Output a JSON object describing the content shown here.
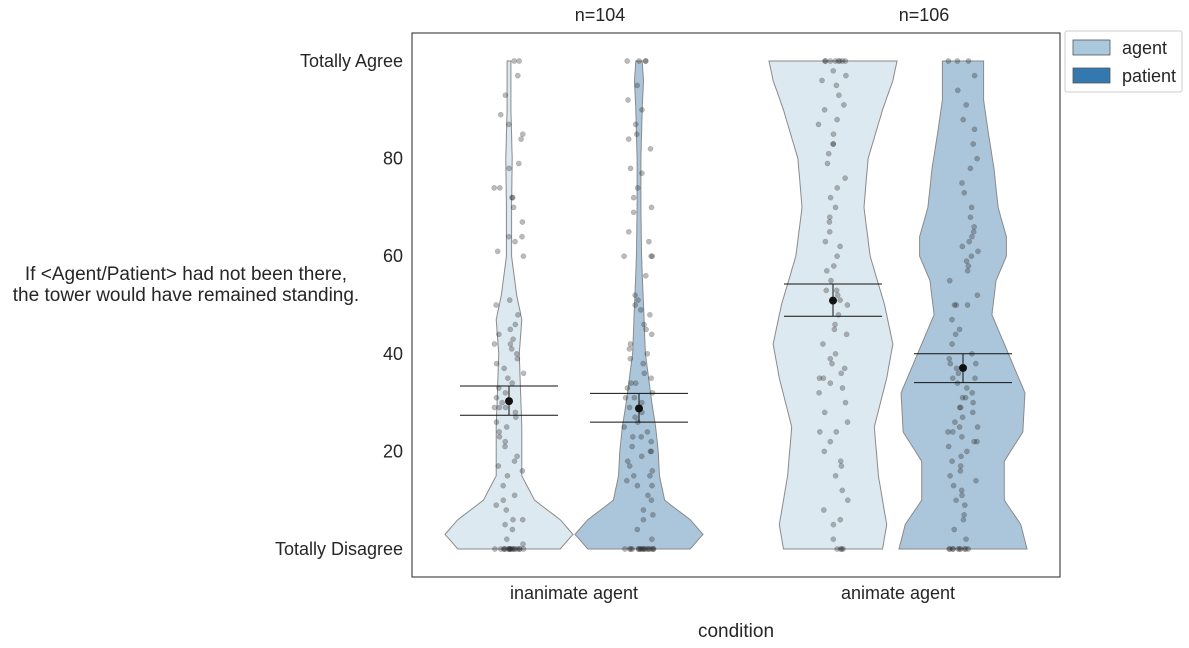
{
  "chart_data": {
    "type": "violin",
    "xlabel": "condition",
    "ylabel": [
      "If <Agent/Patient> had not been there,",
      "the tower would have remained standing."
    ],
    "categories": [
      "inanimate agent",
      "animate agent"
    ],
    "annotations": [
      "n=104",
      "n=106"
    ],
    "ylim": [
      0,
      100
    ],
    "yticks": [
      {
        "value": 0,
        "label": "Totally Disagree"
      },
      {
        "value": 20,
        "label": "20"
      },
      {
        "value": 40,
        "label": "40"
      },
      {
        "value": 60,
        "label": "60"
      },
      {
        "value": 80,
        "label": "80"
      },
      {
        "value": 100,
        "label": "Totally Agree"
      }
    ],
    "grid": false,
    "legend_position": "top-right-outside",
    "series": [
      {
        "name": "agent",
        "color": "#abc9dd",
        "groups": [
          {
            "mean": 30.3,
            "ci": [
              27.4,
              33.4
            ],
            "density": [
              [
                0,
                4
              ],
              [
                3,
                5
              ],
              [
                6,
                4
              ],
              [
                10,
                2
              ],
              [
                15,
                1
              ],
              [
                25,
                1
              ],
              [
                40,
                0.8
              ],
              [
                47,
                1
              ],
              [
                52,
                0.6
              ],
              [
                60,
                0.2
              ],
              [
                70,
                0.2
              ],
              [
                80,
                0.25
              ],
              [
                90,
                0.15
              ],
              [
                100,
                0.15
              ]
            ],
            "points": [
              0,
              0,
              0,
              0,
              0,
              0,
              0,
              0,
              0,
              0,
              0,
              0,
              0,
              0,
              0,
              0,
              0,
              0,
              1,
              2,
              4,
              5,
              6,
              6,
              8,
              9,
              10,
              11,
              13,
              15,
              16,
              17,
              18,
              19,
              21,
              22,
              23,
              24,
              25,
              26,
              27,
              28,
              29,
              29,
              29,
              30,
              31,
              32,
              33,
              34,
              35,
              36,
              37,
              38,
              39,
              40,
              41,
              42,
              42,
              43,
              44,
              45,
              46,
              48,
              50,
              51,
              60,
              61,
              63,
              64,
              64,
              67,
              70,
              72,
              72,
              74,
              74,
              78,
              79,
              84,
              85,
              87,
              89,
              93,
              97,
              100,
              100
            ]
          },
          {
            "mean": 50.9,
            "ci": [
              47.7,
              54.3
            ],
            "density": [
              [
                0,
                1.2
              ],
              [
                5,
                1.3
              ],
              [
                15,
                1.1
              ],
              [
                25,
                1
              ],
              [
                35,
                1.3
              ],
              [
                42,
                1.45
              ],
              [
                50,
                1.25
              ],
              [
                60,
                0.9
              ],
              [
                70,
                0.75
              ],
              [
                80,
                0.85
              ],
              [
                90,
                1.2
              ],
              [
                96,
                1.45
              ],
              [
                100,
                1.55
              ]
            ],
            "points": [
              0,
              0,
              0,
              0,
              2,
              5,
              6,
              8,
              10,
              12,
              15,
              17,
              18,
              20,
              22,
              24,
              24,
              26,
              28,
              30,
              32,
              33,
              34,
              35,
              35,
              36,
              37,
              38,
              39,
              40,
              42,
              44,
              45,
              46,
              48,
              50,
              51,
              52,
              53,
              53,
              55,
              57,
              58,
              60,
              62,
              63,
              65,
              67,
              68,
              70,
              72,
              74,
              76,
              79,
              81,
              83,
              83,
              85,
              87,
              88,
              90,
              91,
              93,
              95,
              96,
              97,
              98,
              100,
              100,
              100,
              100,
              100,
              100,
              100,
              100
            ]
          }
        ]
      },
      {
        "name": "patient",
        "color": "#3478b0",
        "groups": [
          {
            "mean": 28.8,
            "ci": [
              26.0,
              31.9
            ],
            "density": [
              [
                0,
                4
              ],
              [
                3,
                5
              ],
              [
                6,
                4
              ],
              [
                10,
                2
              ],
              [
                15,
                1.6
              ],
              [
                20,
                1.5
              ],
              [
                25,
                1.3
              ],
              [
                30,
                1
              ],
              [
                40,
                0.5
              ],
              [
                50,
                0.35
              ],
              [
                60,
                0.2
              ],
              [
                70,
                0.15
              ],
              [
                80,
                0.15
              ],
              [
                90,
                0.25
              ],
              [
                96,
                0.35
              ],
              [
                100,
                0.25
              ]
            ],
            "points": [
              0,
              0,
              0,
              0,
              0,
              0,
              0,
              0,
              0,
              0,
              0,
              0,
              0,
              0,
              0,
              0,
              0,
              0,
              2,
              4,
              6,
              7,
              8,
              10,
              11,
              13,
              13,
              14,
              15,
              15,
              16,
              17,
              18,
              19,
              20,
              20,
              21,
              22,
              23,
              23,
              24,
              25,
              26,
              27,
              28,
              29,
              30,
              31,
              31,
              32,
              33,
              34,
              34,
              35,
              36,
              38,
              39,
              40,
              41,
              42,
              44,
              45,
              46,
              48,
              49,
              50,
              51,
              52,
              56,
              60,
              60,
              60,
              63,
              65,
              69,
              70,
              72,
              74,
              77,
              78,
              82,
              84,
              85,
              87,
              90,
              92,
              95,
              100,
              100,
              100,
              100
            ]
          },
          {
            "mean": 37.1,
            "ci": [
              34.1,
              40.0
            ],
            "density": [
              [
                0,
                1.55
              ],
              [
                5,
                1.4
              ],
              [
                10,
                1
              ],
              [
                18,
                1
              ],
              [
                24,
                1.45
              ],
              [
                32,
                1.5
              ],
              [
                40,
                1.1
              ],
              [
                48,
                0.7
              ],
              [
                55,
                0.8
              ],
              [
                60,
                1.05
              ],
              [
                64,
                1.05
              ],
              [
                70,
                0.85
              ],
              [
                78,
                0.75
              ],
              [
                86,
                0.6
              ],
              [
                92,
                0.5
              ],
              [
                98,
                0.5
              ],
              [
                100,
                0.5
              ]
            ],
            "points": [
              0,
              0,
              0,
              0,
              0,
              0,
              0,
              0,
              0,
              0,
              2,
              4,
              6,
              7,
              9,
              10,
              11,
              12,
              13,
              14,
              15,
              16,
              17,
              18,
              19,
              20,
              21,
              22,
              22,
              23,
              24,
              24,
              25,
              25,
              26,
              27,
              28,
              29,
              29,
              30,
              31,
              31,
              32,
              33,
              34,
              35,
              35,
              36,
              37,
              38,
              38,
              39,
              40,
              42,
              44,
              45,
              47,
              50,
              50,
              50,
              52,
              55,
              57,
              58,
              59,
              60,
              61,
              62,
              63,
              64,
              65,
              66,
              68,
              70,
              73,
              75,
              78,
              80,
              83,
              86,
              88,
              91,
              94,
              97,
              100,
              100,
              100
            ]
          }
        ]
      }
    ]
  }
}
